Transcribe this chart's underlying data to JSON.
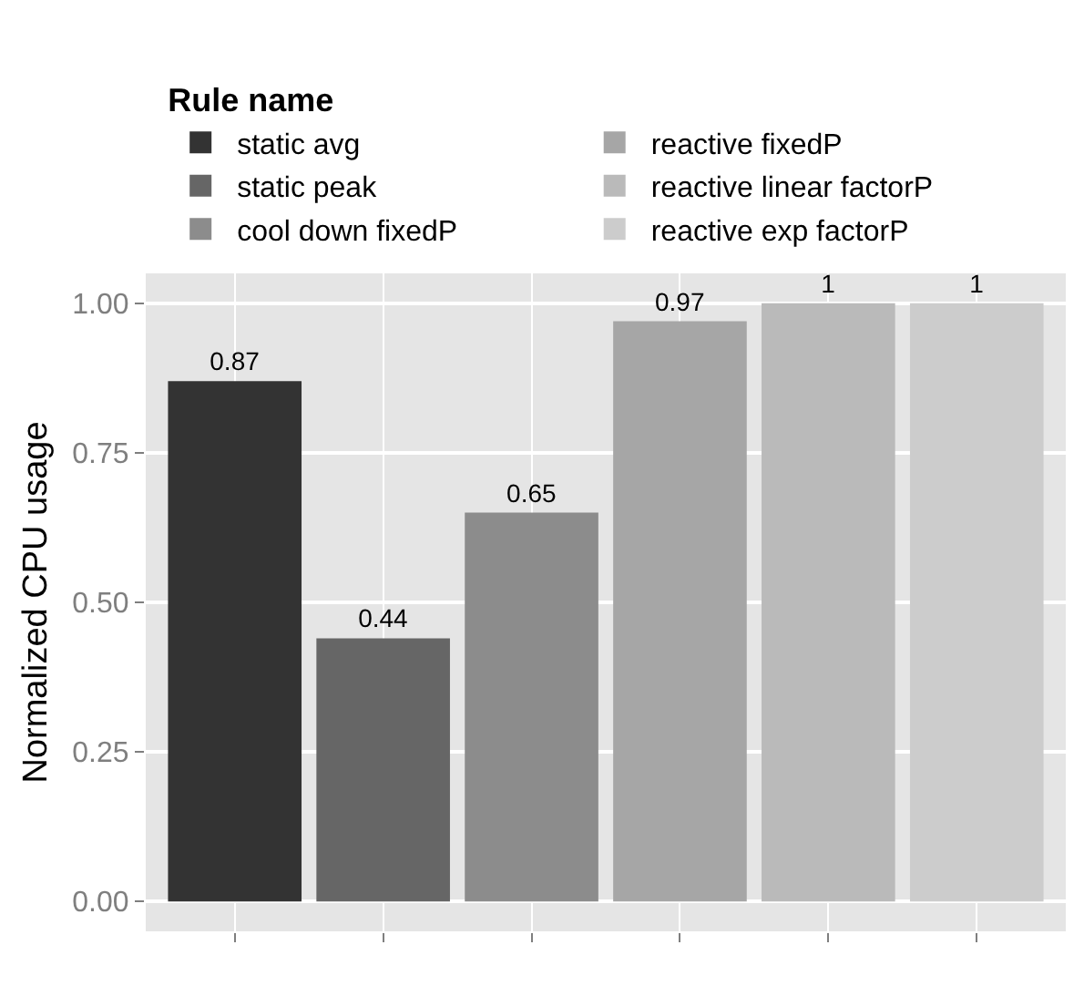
{
  "chart_data": {
    "type": "bar",
    "ylabel": "Normalized CPU usage",
    "legend_title": "Rule name",
    "categories": [
      null,
      null,
      null,
      null,
      null,
      null
    ],
    "series": [
      {
        "name": "static avg",
        "color": "#333333",
        "values": [
          0.87,
          null,
          null,
          null,
          null,
          null
        ]
      },
      {
        "name": "static peak",
        "color": "#666666",
        "values": [
          null,
          0.44,
          null,
          null,
          null,
          null
        ]
      },
      {
        "name": "cool down fixedP",
        "color": "#8c8c8c",
        "values": [
          null,
          null,
          0.65,
          null,
          null,
          null
        ]
      },
      {
        "name": "reactive fixedP",
        "color": "#a6a6a6",
        "values": [
          null,
          null,
          null,
          0.97,
          null,
          null
        ]
      },
      {
        "name": "reactive linear factorP",
        "color": "#bababa",
        "values": [
          null,
          null,
          null,
          null,
          1,
          null
        ]
      },
      {
        "name": "reactive exp factorP",
        "color": "#cccccc",
        "values": [
          null,
          null,
          null,
          null,
          null,
          1
        ]
      }
    ],
    "ylim": [
      -0.05,
      1.05
    ],
    "yticks": [
      {
        "value": 0,
        "label": "0.00"
      },
      {
        "value": 0.25,
        "label": "0.25"
      },
      {
        "value": 0.5,
        "label": "0.50"
      },
      {
        "value": 0.75,
        "label": "0.75"
      },
      {
        "value": 1,
        "label": "1.00"
      }
    ],
    "grid": true,
    "legend": "top",
    "data_labels": true,
    "tick_labels": "y"
  }
}
